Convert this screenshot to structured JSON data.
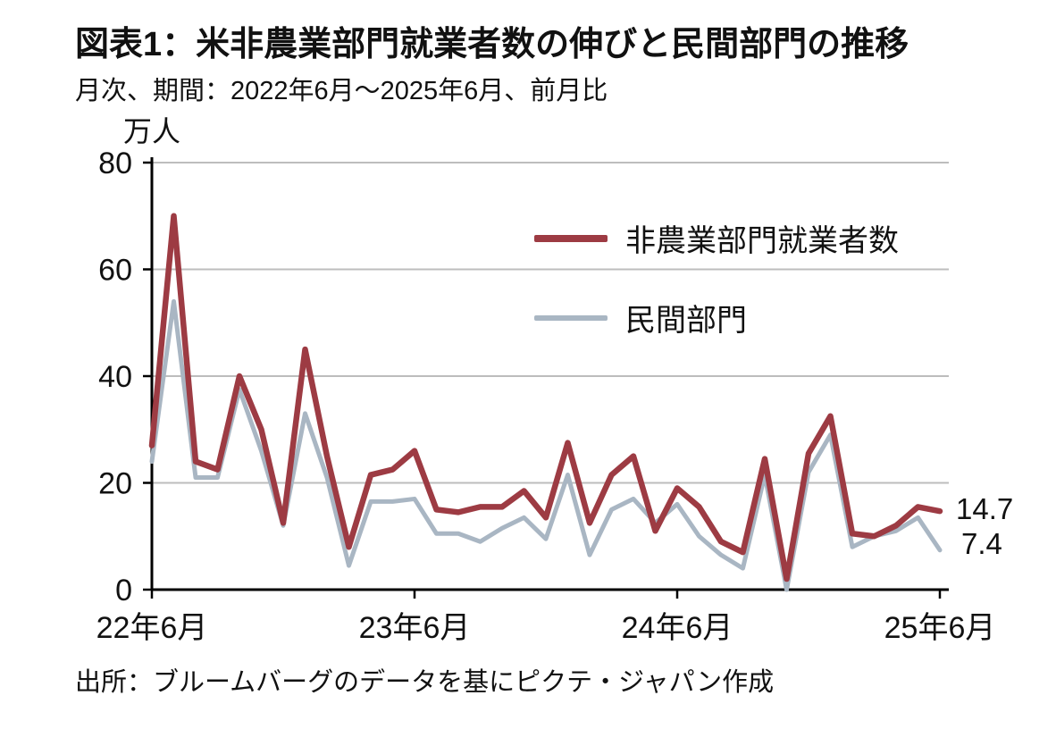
{
  "page": {
    "title": "図表1：米非農業部門就業者数の伸びと民間部門の推移",
    "subtitle": "月次、期間：2022年6月～2025年6月、前月比",
    "source": "出所：ブルームバーグのデータを基にピクテ・ジャパン作成",
    "background": "#ffffff",
    "text_color": "#111111"
  },
  "chart_data": {
    "type": "line",
    "title": "図表1：米非農業部門就業者数の伸びと民間部門の推移",
    "subtitle": "月次、期間：2022年6月～2025年6月、前月比",
    "unit_label": "万人",
    "ylabel": "万人",
    "xlabel": "",
    "ylim": [
      0,
      80
    ],
    "y_ticks": [
      0,
      20,
      40,
      60,
      80
    ],
    "x_tick_labels": [
      "22年6月",
      "23年6月",
      "24年6月",
      "25年6月"
    ],
    "x_tick_indices": [
      0,
      12,
      24,
      36
    ],
    "grid": "horizontal",
    "legend_position": "inside-upper-right",
    "axis_color": "#000000",
    "grid_color": "#bdbdbd",
    "series": [
      {
        "name": "非農業部門就業者数",
        "color": "#9d3b43",
        "line_width": 6.5,
        "end_label": "14.7",
        "values": [
          27,
          70,
          24,
          22.5,
          40,
          30,
          12.5,
          45,
          25,
          8,
          21.5,
          22.5,
          26,
          15,
          14.5,
          15.5,
          15.5,
          18.5,
          13.5,
          27.5,
          12.5,
          21.5,
          25,
          11,
          19,
          15.5,
          9,
          7,
          24.5,
          2,
          25.5,
          32.5,
          10.5,
          10,
          12,
          15.5,
          14.7
        ]
      },
      {
        "name": "民間部門",
        "color": "#a9b6c3",
        "line_width": 5,
        "end_label": "7.4",
        "values": [
          24,
          54,
          21,
          21,
          37.5,
          26,
          12,
          33,
          21,
          4.5,
          16.5,
          16.5,
          17,
          10.5,
          10.5,
          9,
          11.5,
          13.5,
          9.5,
          21.5,
          6.5,
          15,
          17,
          12.5,
          16,
          10,
          6.5,
          4,
          21.5,
          0,
          22,
          29,
          8,
          10,
          11,
          13.5,
          7.4
        ]
      }
    ]
  }
}
